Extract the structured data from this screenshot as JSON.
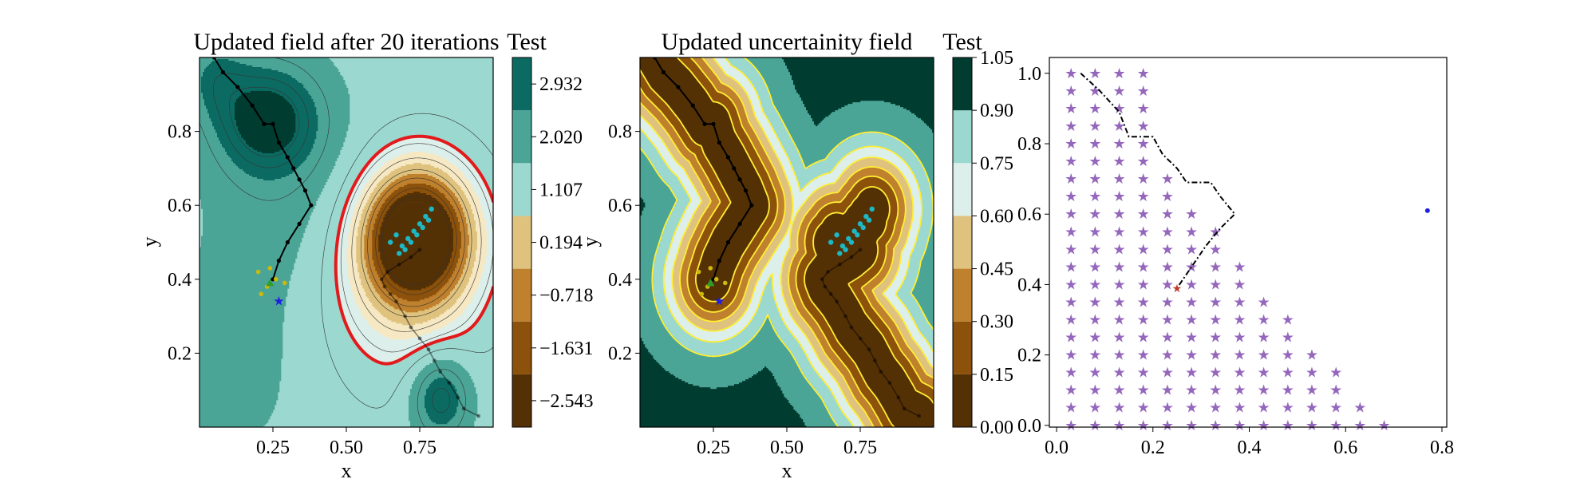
{
  "figure": {
    "panels": [
      {
        "title": "Updated field after 20 iterations",
        "xlabel": "x",
        "ylabel": "y",
        "x_ticks": [
          "0.25",
          "0.50",
          "0.75"
        ],
        "y_ticks": [
          "0.2",
          "0.4",
          "0.6",
          "0.8"
        ],
        "colorbar": {
          "label": "Test",
          "tick_labels": [
            "2.932",
            "2.020",
            "1.107",
            "0.194",
            "−0.718",
            "−1.631",
            "−2.543"
          ]
        }
      },
      {
        "title": "Updated uncertainity field",
        "xlabel": "x",
        "ylabel": "y",
        "x_ticks": [
          "0.25",
          "0.50",
          "0.75"
        ],
        "y_ticks": [
          "0.2",
          "0.4",
          "0.6",
          "0.8"
        ],
        "colorbar": {
          "label": "Test",
          "tick_labels": [
            "1.05",
            "0.90",
            "0.75",
            "0.60",
            "0.45",
            "0.30",
            "0.15",
            "0.00"
          ]
        }
      },
      {
        "title": "",
        "x_ticks": [
          "0.0",
          "0.2",
          "0.4",
          "0.6",
          "0.8"
        ],
        "y_ticks": [
          "0.0",
          "0.2",
          "0.4",
          "0.6",
          "0.8",
          "1.0"
        ]
      }
    ],
    "colors": {
      "brbg": [
        "#543005",
        "#8c510a",
        "#bf812d",
        "#dfc27d",
        "#f6e8c3",
        "#dcefeb",
        "#9bd8cf",
        "#4ba597",
        "#0b6b62",
        "#003c30"
      ],
      "red_contour": "#e31a1c",
      "yellow_contour": "#ffee33",
      "path": "#000000",
      "cyan_points": "#1cb8c4",
      "yellow_points": "#cdb90b",
      "green_marker": "#2ca02c",
      "blue_marker": "#1f1fe0",
      "grid_stars": "#9467bd",
      "red_marker": "#c0392b"
    }
  },
  "chart_data": [
    {
      "type": "contour",
      "title": "Updated field after 20 iterations",
      "xlabel": "x",
      "ylabel": "y",
      "xlim": [
        0.0,
        1.0
      ],
      "ylim": [
        0.0,
        1.0
      ],
      "colorbar_label": "Test",
      "colorbar_levels": [
        -2.543,
        -1.631,
        -0.718,
        0.194,
        1.107,
        2.02,
        2.932
      ],
      "features": [
        {
          "kind": "peak",
          "x": 0.24,
          "y": 0.82,
          "value": 3.0
        },
        {
          "kind": "peak",
          "x": 0.82,
          "y": 0.08,
          "value": 2.5
        },
        {
          "kind": "trough",
          "x": 0.75,
          "y": 0.52,
          "value": -2.8
        }
      ],
      "path": {
        "x": [
          0.05,
          0.08,
          0.13,
          0.18,
          0.22,
          0.25,
          0.27,
          0.3,
          0.32,
          0.34,
          0.36,
          0.38,
          0.34,
          0.3,
          0.27,
          0.25
        ],
        "y": [
          1.0,
          0.96,
          0.92,
          0.87,
          0.82,
          0.82,
          0.77,
          0.73,
          0.7,
          0.67,
          0.64,
          0.6,
          0.55,
          0.5,
          0.45,
          0.4
        ]
      },
      "second_path": {
        "x": [
          0.75,
          0.72,
          0.68,
          0.64,
          0.62,
          0.63,
          0.65,
          0.67,
          0.7,
          0.72,
          0.75,
          0.78,
          0.8,
          0.82,
          0.85,
          0.88,
          0.9,
          0.95
        ],
        "y": [
          0.48,
          0.46,
          0.44,
          0.42,
          0.4,
          0.38,
          0.36,
          0.34,
          0.3,
          0.27,
          0.24,
          0.21,
          0.18,
          0.15,
          0.12,
          0.08,
          0.05,
          0.03
        ]
      },
      "cyan_points": {
        "x": [
          0.65,
          0.67,
          0.69,
          0.71,
          0.73,
          0.75,
          0.77,
          0.79,
          0.68,
          0.7,
          0.72,
          0.74,
          0.76,
          0.78
        ],
        "y": [
          0.5,
          0.52,
          0.49,
          0.51,
          0.53,
          0.55,
          0.57,
          0.59,
          0.47,
          0.48,
          0.5,
          0.52,
          0.54,
          0.56
        ]
      },
      "yellow_points": {
        "x": [
          0.2,
          0.23,
          0.26,
          0.29,
          0.21,
          0.24
        ],
        "y": [
          0.42,
          0.38,
          0.4,
          0.39,
          0.36,
          0.43
        ]
      },
      "green_marker": {
        "x": 0.24,
        "y": 0.39
      },
      "blue_star": {
        "x": 0.27,
        "y": 0.34
      }
    },
    {
      "type": "contour",
      "title": "Updated uncertainity field",
      "xlabel": "x",
      "ylabel": "y",
      "xlim": [
        0.0,
        1.0
      ],
      "ylim": [
        0.0,
        1.0
      ],
      "colorbar_label": "Test",
      "colorbar_levels": [
        0.0,
        0.15,
        0.3,
        0.45,
        0.6,
        0.75,
        0.9,
        1.05
      ],
      "note_values": "low uncertainty along sampled paths, high uncertainty in corners"
    },
    {
      "type": "scatter",
      "title": "",
      "xlim": [
        0.0,
        0.8
      ],
      "ylim": [
        0.0,
        1.0
      ],
      "grid_rows_y": [
        1.0,
        0.95,
        0.9,
        0.85,
        0.8,
        0.75,
        0.7,
        0.65,
        0.6,
        0.55,
        0.5,
        0.45,
        0.4,
        0.35,
        0.3,
        0.25,
        0.2,
        0.15,
        0.1,
        0.05,
        0.0
      ],
      "grid_stars_x_start": 0.03,
      "grid_stars_x_step": 0.05,
      "path": {
        "x": [
          0.05,
          0.09,
          0.13,
          0.15,
          0.2,
          0.22,
          0.25,
          0.27,
          0.32,
          0.34,
          0.37,
          0.34,
          0.31,
          0.28,
          0.25
        ],
        "y": [
          1.0,
          0.95,
          0.89,
          0.82,
          0.82,
          0.77,
          0.73,
          0.69,
          0.69,
          0.65,
          0.6,
          0.56,
          0.51,
          0.45,
          0.39
        ]
      },
      "red_marker": {
        "x": 0.25,
        "y": 0.39
      },
      "blue_dot": {
        "x": 0.77,
        "y": 0.61
      }
    }
  ]
}
